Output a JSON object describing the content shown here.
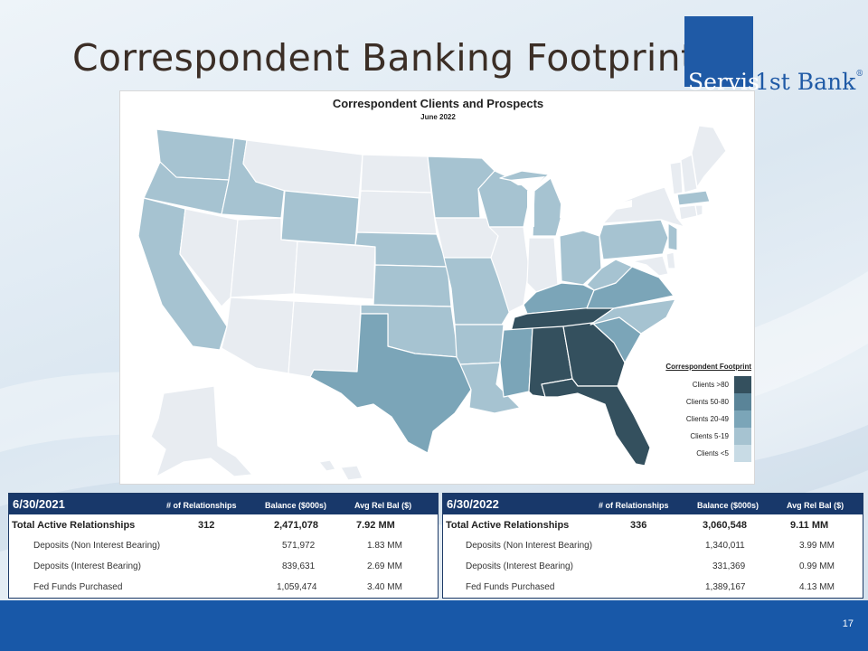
{
  "slide_title": "Correspondent Banking Footprint",
  "logo": {
    "part1": "Servis",
    "part2": "1st Bank",
    "mark": "®"
  },
  "map": {
    "title": "Correspondent Clients and Prospects",
    "subtitle": "June 2022",
    "legend": {
      "title": "Correspondent Footprint",
      "items": [
        {
          "label": "Clients >80",
          "color": "#34505e"
        },
        {
          "label": "Clients 50-80",
          "color": "#5a8498"
        },
        {
          "label": "Clients 20-49",
          "color": "#7ba5b8"
        },
        {
          "label": "Clients 5-19",
          "color": "#a6c3d1"
        },
        {
          "label": "Clients <5",
          "color": "#c8dbe5"
        }
      ]
    },
    "no_data_color": "#e8ecf1"
  },
  "table_2021": {
    "date": "6/30/2021",
    "headers": [
      "# of Relationships",
      "Balance ($000s)",
      "Avg Rel Bal ($)"
    ],
    "total": {
      "label": "Total Active Relationships",
      "relationships": "312",
      "balance": "2,471,078",
      "avg": "7.92 MM"
    },
    "rows": [
      {
        "label": "Deposits (Non Interest Bearing)",
        "balance": "571,972",
        "avg": "1.83 MM"
      },
      {
        "label": "Deposits (Interest Bearing)",
        "balance": "839,631",
        "avg": "2.69 MM"
      },
      {
        "label": "Fed Funds Purchased",
        "balance": "1,059,474",
        "avg": "3.40 MM"
      }
    ]
  },
  "table_2022": {
    "date": "6/30/2022",
    "headers": [
      "# of Relationships",
      "Balance ($000s)",
      "Avg Rel Bal ($)"
    ],
    "total": {
      "label": "Total Active Relationships",
      "relationships": "336",
      "balance": "3,060,548",
      "avg": "9.11 MM"
    },
    "rows": [
      {
        "label": "Deposits (Non Interest Bearing)",
        "balance": "1,340,011",
        "avg": "3.99 MM"
      },
      {
        "label": "Deposits (Interest Bearing)",
        "balance": "331,369",
        "avg": "0.99 MM"
      },
      {
        "label": "Fed Funds Purchased",
        "balance": "1,389,167",
        "avg": "4.13 MM"
      }
    ]
  },
  "page_number": "17"
}
